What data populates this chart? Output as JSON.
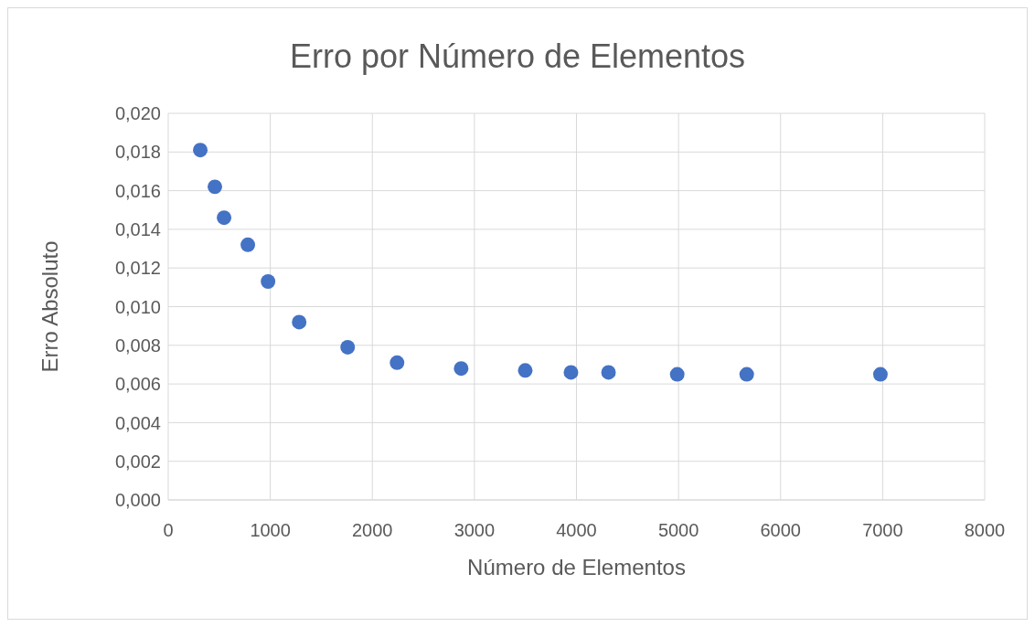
{
  "chart_data": {
    "type": "scatter",
    "title": "Erro por Número de Elementos",
    "xlabel": "Número de Elementos",
    "ylabel": "Erro Absoluto",
    "x": [
      314,
      457,
      547,
      780,
      978,
      1283,
      1758,
      2242,
      2870,
      3498,
      3946,
      4314,
      4987,
      5668,
      6978
    ],
    "series": [
      {
        "color": "#4472c4",
        "values": [
          0.0181,
          0.0162,
          0.0146,
          0.0132,
          0.0113,
          0.0092,
          0.0079,
          0.0071,
          0.0068,
          0.0067,
          0.0066,
          0.0066,
          0.0065,
          0.0065,
          0.0065
        ]
      }
    ],
    "xlim": [
      0,
      8000
    ],
    "xticks": [
      0,
      1000,
      2000,
      3000,
      4000,
      5000,
      6000,
      7000,
      8000
    ],
    "ylim": [
      0,
      0.02
    ],
    "yticks": [
      {
        "value": 0,
        "label": "0,000"
      },
      {
        "value": 0.002,
        "label": "0,002"
      },
      {
        "value": 0.004,
        "label": "0,004"
      },
      {
        "value": 0.006,
        "label": "0,006"
      },
      {
        "value": 0.008,
        "label": "0,008"
      },
      {
        "value": 0.01,
        "label": "0,010"
      },
      {
        "value": 0.012,
        "label": "0,012"
      },
      {
        "value": 0.014,
        "label": "0,014"
      },
      {
        "value": 0.016,
        "label": "0,016"
      },
      {
        "value": 0.018,
        "label": "0,018"
      },
      {
        "value": 0.02,
        "label": "0,020"
      }
    ],
    "grid": true,
    "legend": false,
    "marker": "circle"
  }
}
